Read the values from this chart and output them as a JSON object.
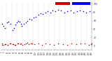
{
  "background_color": "#ffffff",
  "plot_bg_color": "#ffffff",
  "grid_color": "#bbbbbb",
  "humidity_color": "#0000cc",
  "temp_color": "#cc0000",
  "legend_red_color": "#cc0000",
  "legend_blue_color": "#0000ff",
  "ylim": [
    -10,
    105
  ],
  "xlim": [
    0,
    288
  ],
  "ytick_values": [
    0,
    20,
    40,
    60,
    80,
    100
  ],
  "num_vgrid": 18,
  "hum_x": [
    2,
    8,
    12,
    18,
    24,
    30,
    36,
    40,
    45,
    50,
    54,
    58,
    62,
    66,
    72,
    78,
    84,
    90,
    96,
    104,
    110,
    118,
    126,
    132,
    140,
    148,
    156,
    164,
    172,
    180,
    190,
    200,
    210,
    220,
    230,
    240,
    250,
    260,
    270,
    280
  ],
  "hum_y": [
    52,
    48,
    42,
    55,
    58,
    52,
    38,
    42,
    50,
    55,
    60,
    58,
    52,
    48,
    52,
    56,
    60,
    64,
    62,
    68,
    70,
    74,
    78,
    76,
    80,
    82,
    80,
    84,
    82,
    86,
    84,
    80,
    82,
    84,
    80,
    82,
    84,
    82,
    80,
    82
  ],
  "temp_x": [
    2,
    8,
    15,
    22,
    30,
    38,
    46,
    55,
    64,
    74,
    84,
    95,
    106,
    118,
    130,
    142,
    155,
    168,
    182,
    196,
    210,
    224,
    238,
    252,
    266,
    278,
    285,
    288,
    4,
    12,
    20,
    28,
    36,
    44,
    52,
    60,
    68,
    78,
    88,
    98
  ],
  "temp_y": [
    5,
    3,
    4,
    2,
    5,
    4,
    3,
    6,
    5,
    4,
    7,
    5,
    4,
    6,
    3,
    5,
    4,
    3,
    5,
    4,
    3,
    5,
    4,
    6,
    5,
    3,
    4,
    5,
    2,
    4,
    3,
    5,
    4,
    3,
    5,
    4,
    3,
    5,
    4,
    6
  ]
}
